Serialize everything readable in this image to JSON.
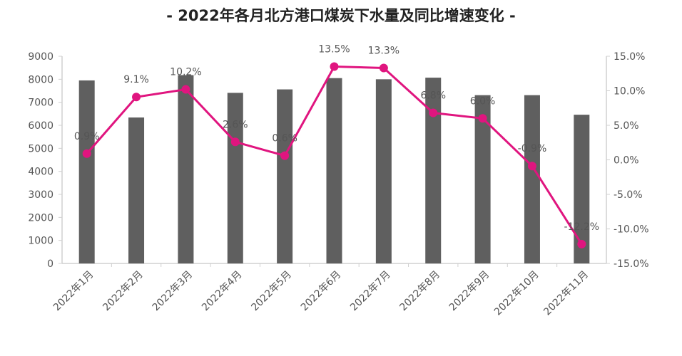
{
  "chart_data": {
    "type": "bar+line",
    "title": "- 2022年各月北方港口煤炭下水量及同比增速变化 -",
    "categories": [
      "2022年1月",
      "2022年2月",
      "2022年3月",
      "2022年4月",
      "2022年5月",
      "2022年6月",
      "2022年7月",
      "2022年8月",
      "2022年9月",
      "2022年10月",
      "2022年11月"
    ],
    "bar_values": [
      7950,
      6340,
      8180,
      7410,
      7560,
      8050,
      8000,
      8070,
      7310,
      7310,
      6460
    ],
    "line_values": [
      0.9,
      9.1,
      10.2,
      2.6,
      0.6,
      13.5,
      13.3,
      6.8,
      6.0,
      -0.9,
      -12.2
    ],
    "line_labels": [
      "0.9%",
      "9.1%",
      "10.2%",
      "2.6%",
      "0.6%",
      "13.5%",
      "13.3%",
      "6.8%",
      "6.0%",
      "-0.9%",
      "-12.2%"
    ],
    "y_left": {
      "range": [
        0,
        9000
      ],
      "ticks": [
        "0",
        "1000",
        "2000",
        "3000",
        "4000",
        "5000",
        "6000",
        "7000",
        "8000",
        "9000"
      ]
    },
    "y_right": {
      "range": [
        -15,
        15
      ],
      "ticks": [
        "-15.0%",
        "-10.0%",
        "-5.0%",
        "0.0%",
        "5.0%",
        "10.0%",
        "15.0%"
      ]
    },
    "grid": false,
    "legend": "none",
    "colors": {
      "bar": "#5f5f5f",
      "line": "#e0157f",
      "axis": "#d0d0d0"
    }
  }
}
